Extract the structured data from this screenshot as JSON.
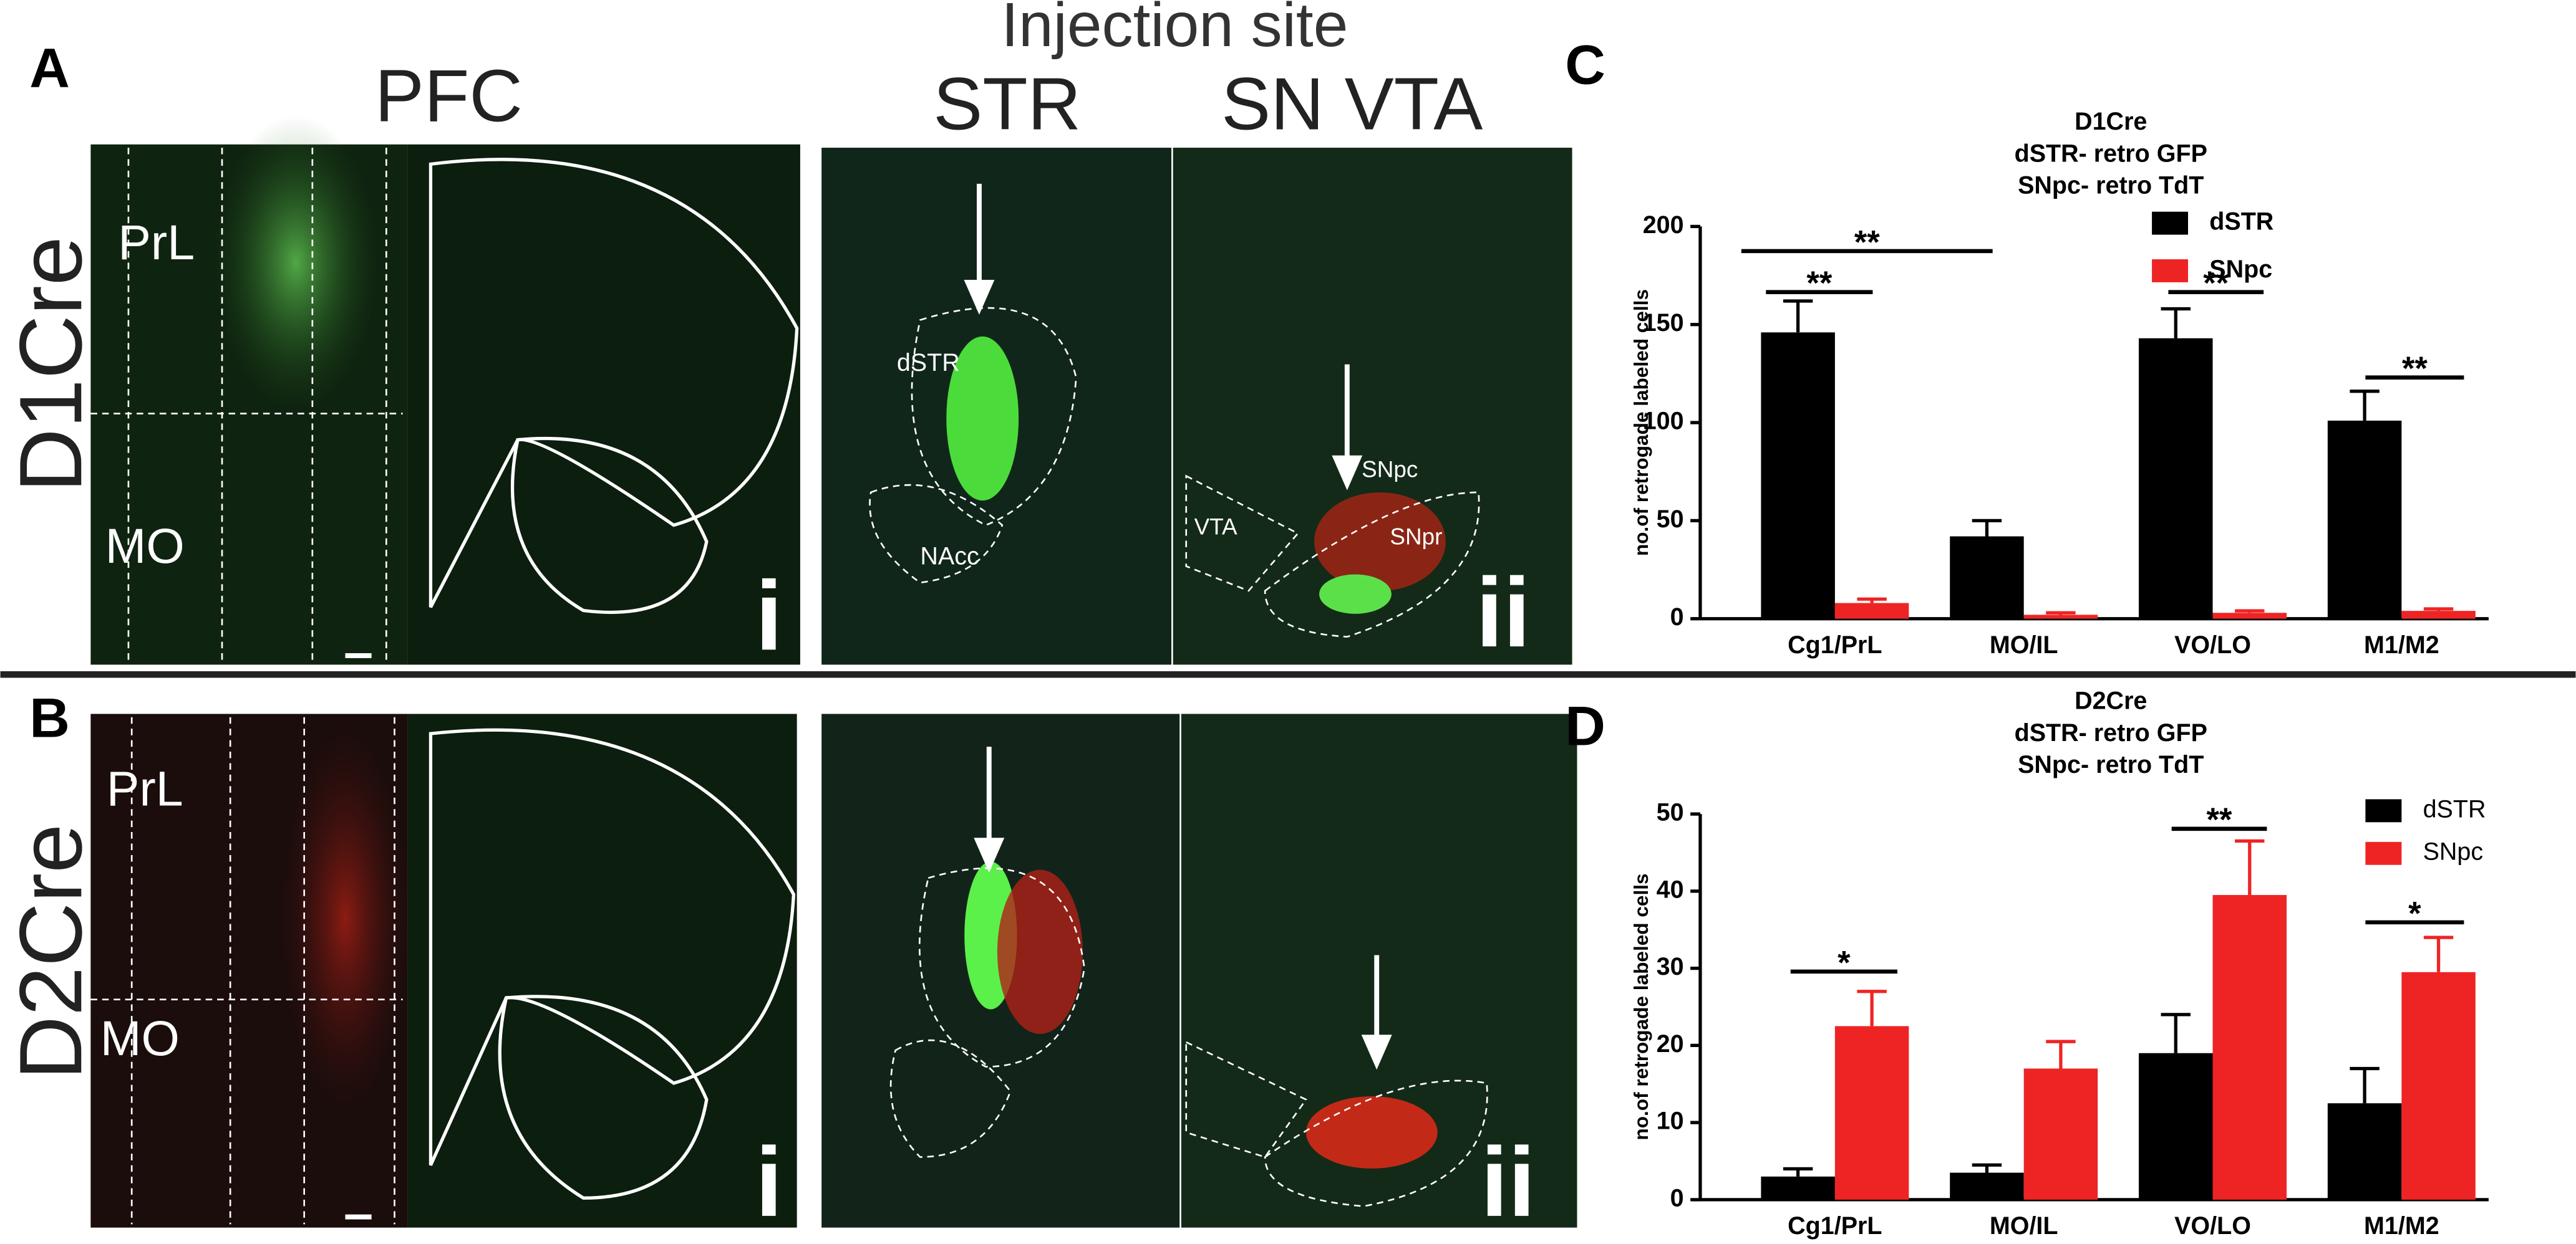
{
  "figure": {
    "panel_labels": [
      "A",
      "B",
      "C",
      "D"
    ],
    "injection_site": "Injection site",
    "column_headers": [
      "PFC",
      "STR",
      "SN VTA"
    ],
    "row_labels": [
      "D1Cre",
      "D2Cre"
    ],
    "images": [
      {
        "labels": [
          "PrL",
          "MO"
        ]
      },
      {
        "labels": [
          "i"
        ]
      },
      {
        "labels": [
          "dSTR",
          "NAcc"
        ]
      },
      {
        "labels": [
          "SNpc",
          "SNpr",
          "VTA",
          "ii"
        ]
      },
      {
        "labels": [
          "PrL",
          "MO"
        ]
      },
      {
        "labels": [
          "i"
        ]
      },
      {
        "labels": []
      },
      {
        "labels": [
          "ii"
        ]
      }
    ]
  },
  "chart_data": [
    {
      "type": "bar",
      "title": [
        "D1Cre",
        "dSTR- retro GFP",
        "SNpc- retro TdT"
      ],
      "ylabel": "no.of retrogade labeled cells",
      "categories": [
        "Cg1/PrL",
        "MO/IL",
        "VO/LO",
        "M1/M2"
      ],
      "series": [
        {
          "name": "dSTR",
          "color": "#000000",
          "values": [
            146,
            42,
            143,
            101
          ],
          "errors": [
            16,
            8,
            15,
            15
          ]
        },
        {
          "name": "SNpc",
          "color": "#ee2424",
          "values": [
            8,
            2,
            3,
            4
          ],
          "errors": [
            2,
            1,
            1,
            1
          ]
        }
      ],
      "ylim": [
        0,
        200
      ],
      "yticks": [
        0,
        50,
        100,
        150,
        200
      ],
      "annotations": [
        "**",
        "**",
        "**",
        "**"
      ],
      "legend": "upper right"
    },
    {
      "type": "bar",
      "title": [
        "D2Cre",
        "dSTR- retro GFP",
        "SNpc- retro TdT"
      ],
      "ylabel": "no.of retrogade labeled cells",
      "categories": [
        "Cg1/PrL",
        "MO/IL",
        "VO/LO",
        "M1/M2"
      ],
      "series": [
        {
          "name": "dSTR",
          "color": "#000000",
          "values": [
            3,
            3.5,
            19,
            12.5
          ],
          "errors": [
            1,
            1,
            5,
            4.5
          ]
        },
        {
          "name": "SNpc",
          "color": "#ee2424",
          "values": [
            22.5,
            17,
            39.5,
            29.5
          ],
          "errors": [
            4.5,
            3.5,
            7,
            4.5
          ]
        }
      ],
      "ylim": [
        0,
        50
      ],
      "yticks": [
        0,
        10,
        20,
        30,
        40,
        50
      ],
      "annotations": [
        "*",
        "**",
        "*"
      ],
      "legend": "upper right"
    }
  ]
}
